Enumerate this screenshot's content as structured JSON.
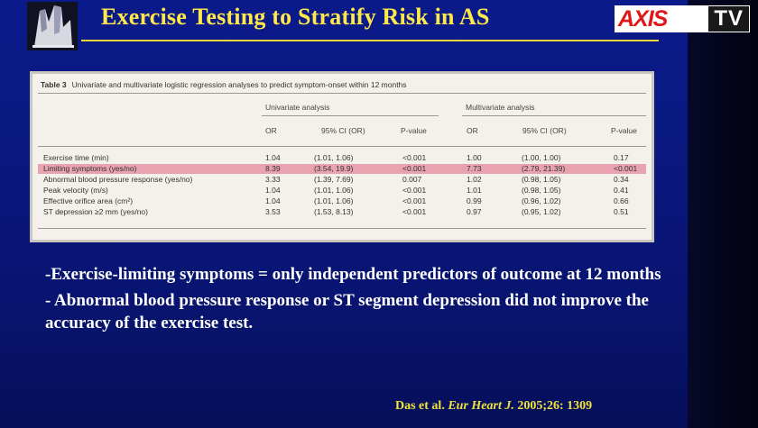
{
  "title": "Exercise Testing to Stratify Risk in AS",
  "logo": {
    "axis_text": "AXIS",
    "tv_text": "TV",
    "accent": "#e01818"
  },
  "table": {
    "caption_label": "Table 3",
    "caption_text": "Univariate and multivariate logistic regression analyses to predict symptom-onset within 12 months",
    "group_univariate": "Univariate analysis",
    "group_multivariate": "Multivariate analysis",
    "columns": [
      "OR",
      "95% CI (OR)",
      "P-value",
      "OR",
      "95% CI (OR)",
      "P-value"
    ],
    "rows": [
      {
        "label": "Exercise time (min)",
        "u_or": "1.04",
        "u_ci": "(1.01, 1.06)",
        "u_p": "<0.001",
        "m_or": "1.00",
        "m_ci": "(1.00, 1.00)",
        "m_p": "0.17"
      },
      {
        "label": "Limiting symptoms (yes/no)",
        "u_or": "8.39",
        "u_ci": "(3.54, 19.9)",
        "u_p": "<0.001",
        "m_or": "7.73",
        "m_ci": "(2.79, 21.39)",
        "m_p": "<0.001",
        "highlight": true
      },
      {
        "label": "Abnormal blood pressure response (yes/no)",
        "u_or": "3.33",
        "u_ci": "(1.39, 7.69)",
        "u_p": "0.007",
        "m_or": "1.02",
        "m_ci": "(0.98, 1.05)",
        "m_p": "0.34"
      },
      {
        "label": "Peak velocity (m/s)",
        "u_or": "1.04",
        "u_ci": "(1.01, 1.06)",
        "u_p": "<0.001",
        "m_or": "1.01",
        "m_ci": "(0.98, 1.05)",
        "m_p": "0.41"
      },
      {
        "label": "Effective orifice area (cm²)",
        "u_or": "1.04",
        "u_ci": "(1.01, 1.06)",
        "u_p": "<0.001",
        "m_or": "0.99",
        "m_ci": "(0.96, 1.02)",
        "m_p": "0.66"
      },
      {
        "label": "ST depression ≥2 mm (yes/no)",
        "u_or": "3.53",
        "u_ci": "(1.53, 8.13)",
        "u_p": "<0.001",
        "m_or": "0.97",
        "m_ci": "(0.95, 1.02)",
        "m_p": "0.51"
      }
    ],
    "highlight_color": "#e8a2b0"
  },
  "bullets": [
    "-Exercise-limiting symptoms = only independent predictors of outcome at 12 months",
    "- Abnormal blood pressure response or ST segment depression did not improve the accuracy of the exercise test."
  ],
  "citation": {
    "authors": "Das et al.",
    "journal": "Eur Heart J.",
    "details": "2005;26: 1309"
  },
  "colors": {
    "title": "#ffe94a",
    "background": "#0a1880",
    "citation": "#f2e23c"
  }
}
